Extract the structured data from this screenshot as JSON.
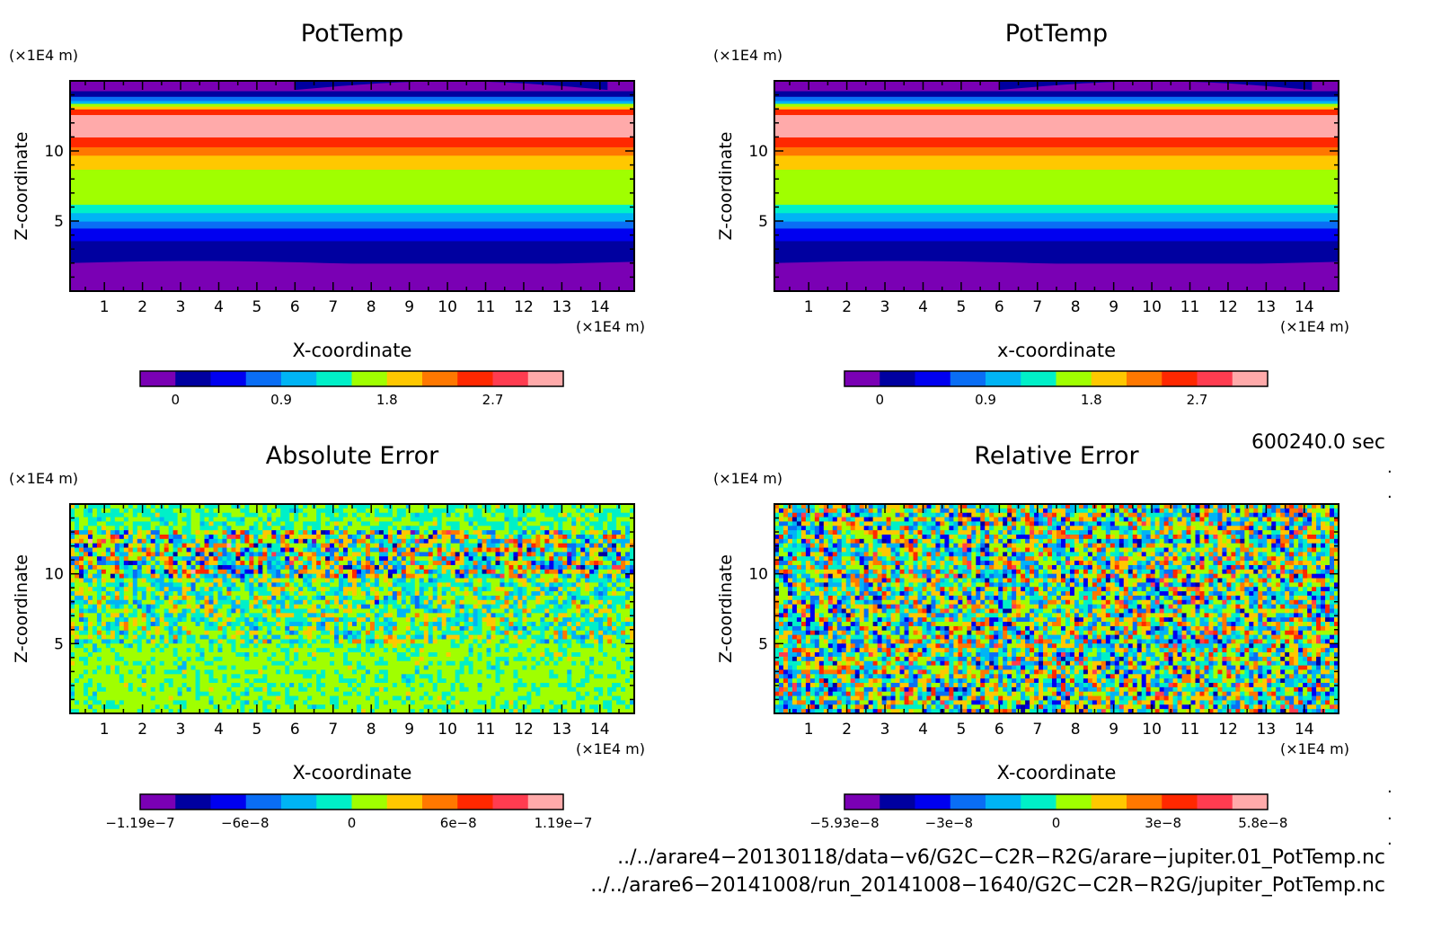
{
  "chart_data": [
    {
      "type": "heatmap",
      "title": "PotTemp",
      "xlabel": "X-coordinate",
      "ylabel": "Z-coordinate",
      "x_unit": "(×1E4 m)",
      "y_unit": "(×1E4 m)",
      "x_ticks": [
        "1",
        "2",
        "3",
        "4",
        "5",
        "6",
        "7",
        "8",
        "9",
        "10",
        "11",
        "12",
        "13",
        "14"
      ],
      "y_ticks": [
        "5",
        "10"
      ],
      "xlim": [
        0.1,
        14.9
      ],
      "ylim": [
        0,
        15
      ],
      "pattern": "stratified",
      "colorbar_ticks": [
        "0",
        "0.9",
        "1.8",
        "2.7"
      ],
      "colorbar_tick_values": [
        0,
        0.9,
        1.8,
        2.7
      ],
      "colorbar_range": [
        -0.3,
        3.3
      ]
    },
    {
      "type": "heatmap",
      "title": "PotTemp",
      "xlabel": "x-coordinate",
      "ylabel": "Z-coordinate",
      "x_unit": "(×1E4 m)",
      "y_unit": "(×1E4 m)",
      "x_ticks": [
        "1",
        "2",
        "3",
        "4",
        "5",
        "6",
        "7",
        "8",
        "9",
        "10",
        "11",
        "12",
        "13",
        "14"
      ],
      "y_ticks": [
        "5",
        "10"
      ],
      "xlim": [
        0.1,
        14.9
      ],
      "ylim": [
        0,
        15
      ],
      "pattern": "stratified",
      "colorbar_ticks": [
        "0",
        "0.9",
        "1.8",
        "2.7"
      ],
      "colorbar_tick_values": [
        0,
        0.9,
        1.8,
        2.7
      ],
      "colorbar_range": [
        -0.3,
        3.3
      ]
    },
    {
      "type": "heatmap",
      "title": "Absolute Error",
      "xlabel": "X-coordinate",
      "ylabel": "Z-coordinate",
      "x_unit": "(×1E4 m)",
      "y_unit": "(×1E4 m)",
      "x_ticks": [
        "1",
        "2",
        "3",
        "4",
        "5",
        "6",
        "7",
        "8",
        "9",
        "10",
        "11",
        "12",
        "13",
        "14"
      ],
      "y_ticks": [
        "5",
        "10"
      ],
      "xlim": [
        0.1,
        14.9
      ],
      "ylim": [
        0,
        15
      ],
      "pattern": "noise-absolute",
      "colorbar_ticks": [
        "−1.19e−7",
        "−6e−8",
        "0",
        "6e−8",
        "1.19e−7"
      ],
      "colorbar_tick_values": [
        -1.19e-07,
        -6e-08,
        0,
        6e-08,
        1.19e-07
      ],
      "colorbar_range": [
        -1.19e-07,
        1.19e-07
      ]
    },
    {
      "type": "heatmap",
      "title": "Relative Error",
      "xlabel": "X-coordinate",
      "ylabel": "Z-coordinate",
      "x_unit": "(×1E4 m)",
      "y_unit": "(×1E4 m)",
      "x_ticks": [
        "1",
        "2",
        "3",
        "4",
        "5",
        "6",
        "7",
        "8",
        "9",
        "10",
        "11",
        "12",
        "13",
        "14"
      ],
      "y_ticks": [
        "5",
        "10"
      ],
      "xlim": [
        0.1,
        14.9
      ],
      "ylim": [
        0,
        15
      ],
      "pattern": "noise-relative",
      "colorbar_ticks": [
        "−5.93e−8",
        "−3e−8",
        "0",
        "3e−8",
        "5.8e−8"
      ],
      "colorbar_tick_values": [
        -5.93e-08,
        -3e-08,
        0,
        3e-08,
        5.8e-08
      ],
      "colorbar_range": [
        -5.93e-08,
        5.93e-08
      ]
    }
  ],
  "palette": [
    "#7a00b4",
    "#0000a0",
    "#0000f0",
    "#0a6ef5",
    "#00b4f5",
    "#00f0c8",
    "#a0ff00",
    "#ffc800",
    "#ff7800",
    "#ff2800",
    "#ff3c50",
    "#ffaaaa"
  ],
  "time_label": "600240.0 sec",
  "files": [
    "../../arare4−20130118/data−v6/G2C−C2R−R2G/arare−jupiter.01_PotTemp.nc",
    "../../arare6−20141008/run_20141008−1640/G2C−C2R−R2G/jupiter_PotTemp.nc"
  ]
}
